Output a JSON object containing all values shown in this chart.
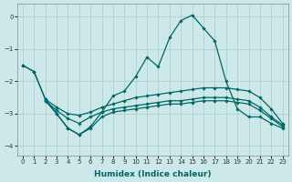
{
  "xlabel": "Humidex (Indice chaleur)",
  "xlim": [
    -0.5,
    23.5
  ],
  "ylim": [
    -4.3,
    0.4
  ],
  "yticks": [
    0,
    -1,
    -2,
    -3,
    -4
  ],
  "xticks": [
    0,
    1,
    2,
    3,
    4,
    5,
    6,
    7,
    8,
    9,
    10,
    11,
    12,
    13,
    14,
    15,
    16,
    17,
    18,
    19,
    20,
    21,
    22,
    23
  ],
  "bg_color": "#cce8e8",
  "grid_color": "#aacccc",
  "line_color": "#006666",
  "line_width": 0.9,
  "marker": "D",
  "marker_size": 1.8,
  "lines": [
    {
      "x": [
        0,
        1,
        2,
        3,
        4,
        5,
        6,
        7,
        8,
        9,
        10,
        11,
        12,
        13,
        14,
        15,
        16,
        17,
        18,
        19,
        20,
        21,
        22,
        23
      ],
      "y": [
        -1.5,
        -1.7,
        -2.55,
        -2.8,
        -3.0,
        -3.05,
        -2.95,
        -2.8,
        -2.7,
        -2.6,
        -2.5,
        -2.45,
        -2.4,
        -2.35,
        -2.3,
        -2.25,
        -2.2,
        -2.2,
        -2.2,
        -2.25,
        -2.3,
        -2.5,
        -2.85,
        -3.3
      ]
    },
    {
      "x": [
        2,
        3,
        4,
        5,
        6,
        7,
        8,
        9,
        10,
        11,
        12,
        13,
        14,
        15,
        16,
        17,
        18,
        19,
        20,
        21,
        22,
        23
      ],
      "y": [
        -2.6,
        -2.9,
        -3.15,
        -3.3,
        -3.1,
        -2.95,
        -2.85,
        -2.8,
        -2.75,
        -2.7,
        -2.65,
        -2.6,
        -2.6,
        -2.55,
        -2.5,
        -2.5,
        -2.5,
        -2.55,
        -2.6,
        -2.8,
        -3.1,
        -3.35
      ]
    },
    {
      "x": [
        2,
        3,
        4,
        5,
        6,
        7,
        8,
        9,
        10,
        11,
        12,
        13,
        14,
        15,
        16,
        17,
        18,
        19,
        20,
        21,
        22,
        23
      ],
      "y": [
        -2.6,
        -3.0,
        -3.45,
        -3.65,
        -3.45,
        -3.1,
        -2.95,
        -2.9,
        -2.85,
        -2.8,
        -2.75,
        -2.7,
        -2.7,
        -2.65,
        -2.6,
        -2.6,
        -2.6,
        -2.65,
        -2.7,
        -2.9,
        -3.15,
        -3.4
      ]
    },
    {
      "x": [
        0,
        1,
        2,
        3,
        4,
        5,
        6,
        7,
        8,
        9,
        10,
        11,
        12,
        13,
        14,
        15,
        16,
        17,
        18,
        19,
        20,
        21,
        22,
        23
      ],
      "y": [
        -1.5,
        -1.7,
        -2.55,
        -3.0,
        -3.45,
        -3.65,
        -3.4,
        -2.95,
        -2.45,
        -2.3,
        -1.85,
        -1.25,
        -1.55,
        -0.65,
        -0.12,
        0.05,
        -0.35,
        -0.75,
        -2.0,
        -2.85,
        -3.1,
        -3.1,
        -3.3,
        -3.45
      ]
    }
  ]
}
